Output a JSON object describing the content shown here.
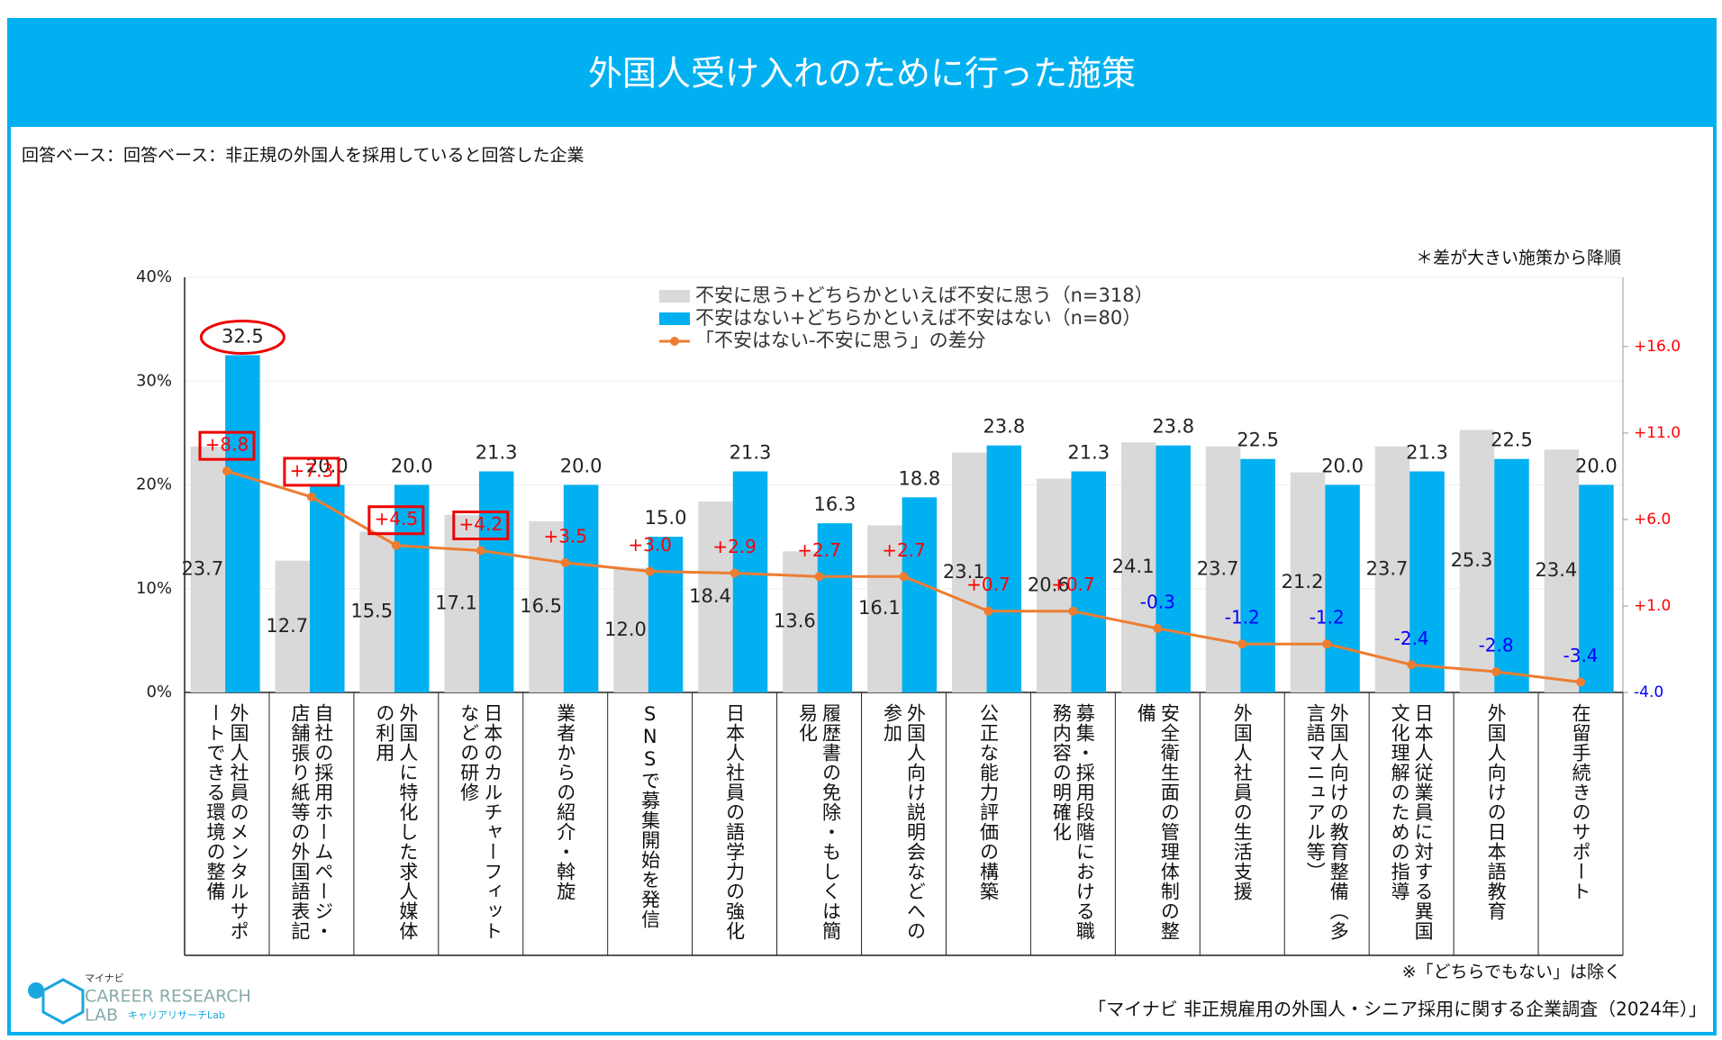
{
  "chart_data": {
    "type": "bar_line",
    "title": "外国人受け入れのために行った施策",
    "subtitle": "回答ベース：回答ベース：非正規の外国人を採用していると回答した企業",
    "note": "＊差が大きい施策から降順",
    "footnote": "※「どちらでもない」は除く",
    "source": "「マイナビ 非正規雇用の外国人・シニア採用に関する企業調査（2024年）」",
    "logo": {
      "top": "マイナビ",
      "line1": "CAREER RESEARCH",
      "line2": "LAB",
      "sub": "キャリアリサーチLab"
    },
    "categories": [
      "外国人社員のメンタルサポートできる環境の整備",
      "自社の採用ホームページ・店舗張り紙等の外国語表記",
      "外国人に特化した求人媒体の利用",
      "日本のカルチャーフィットなどの研修",
      "業者からの紹介・斡旋",
      "SNSで募集開始を発信",
      "日本人社員の語学力の強化",
      "履歴書の免除・もしくは簡易化",
      "外国人向け説明会などへの参加",
      "公正な能力評価の構築",
      "募集・採用段階における職務内容の明確化",
      "安全衛生面の管理体制の整備",
      "外国人社員の生活支援",
      "外国人向けの教育整備（多言語マニュアル等）",
      "日本人従業員に対する異国文化理解のための指導",
      "外国人向けの日本語教育",
      "在留手続きのサポート"
    ],
    "series": [
      {
        "name": "不安に思う+どちらかといえば不安に思う（n=318）",
        "color": "#d9d9d9",
        "kind": "bar",
        "values": [
          23.7,
          12.7,
          15.5,
          17.1,
          16.5,
          12.0,
          18.4,
          13.6,
          16.1,
          23.1,
          20.6,
          24.1,
          23.7,
          21.2,
          23.7,
          25.3,
          23.4
        ],
        "value_labels": [
          "23.7",
          "12.7",
          "15.5",
          "17.1",
          "16.5",
          "12.0",
          "18.4",
          "13.6",
          "16.1",
          "23.1",
          "20.6",
          "24.1",
          "23.7",
          "21.2",
          "23.7",
          "25.3",
          "23.4"
        ]
      },
      {
        "name": "不安はない+どちらかといえば不安はない（n=80）",
        "color": "#00b0f0",
        "kind": "bar",
        "values": [
          32.5,
          20.0,
          20.0,
          21.3,
          20.0,
          15.0,
          21.3,
          16.3,
          18.8,
          23.8,
          21.3,
          23.8,
          22.5,
          20.0,
          21.3,
          22.5,
          20.0
        ],
        "value_labels": [
          "32.5",
          "20.0",
          "20.0",
          "21.3",
          "20.0",
          "15.0",
          "21.3",
          "16.3",
          "18.8",
          "23.8",
          "21.3",
          "23.8",
          "22.5",
          "20.0",
          "21.3",
          "22.5",
          "20.0"
        ]
      },
      {
        "name": "「不安はない-不安に思う」の差分",
        "color": "#ed7d31",
        "kind": "line",
        "axis": "y2",
        "values": [
          8.8,
          7.3,
          4.5,
          4.2,
          3.5,
          3.0,
          2.9,
          2.7,
          2.7,
          0.7,
          0.7,
          -0.3,
          -1.2,
          -1.2,
          -2.4,
          -2.8,
          -3.4
        ],
        "value_labels": [
          "+8.8",
          "+7.3",
          "+4.5",
          "+4.2",
          "+3.5",
          "+3.0",
          "+2.9",
          "+2.7",
          "+2.7",
          "+0.7",
          "+0.7",
          "-0.3",
          "-1.2",
          "-1.2",
          "-2.4",
          "-2.8",
          "-3.4"
        ]
      }
    ],
    "ylim": [
      0,
      40
    ],
    "yticks": [
      {
        "value": 0,
        "label": "0%"
      },
      {
        "value": 10,
        "label": "10%"
      },
      {
        "value": 20,
        "label": "20%"
      },
      {
        "value": 30,
        "label": "30%"
      },
      {
        "value": 40,
        "label": "40%"
      }
    ],
    "y2lim": [
      -4,
      20
    ],
    "y2ticks": [
      {
        "value": -4,
        "label": "-4.0"
      },
      {
        "value": 1,
        "label": "+1.0"
      },
      {
        "value": 6,
        "label": "+6.0"
      },
      {
        "value": 11,
        "label": "+11.0"
      },
      {
        "value": 16,
        "label": "+16.0"
      }
    ],
    "positive_color": "#ff0000",
    "negative_color": "#0000ff",
    "grid": true,
    "legend": "top"
  }
}
